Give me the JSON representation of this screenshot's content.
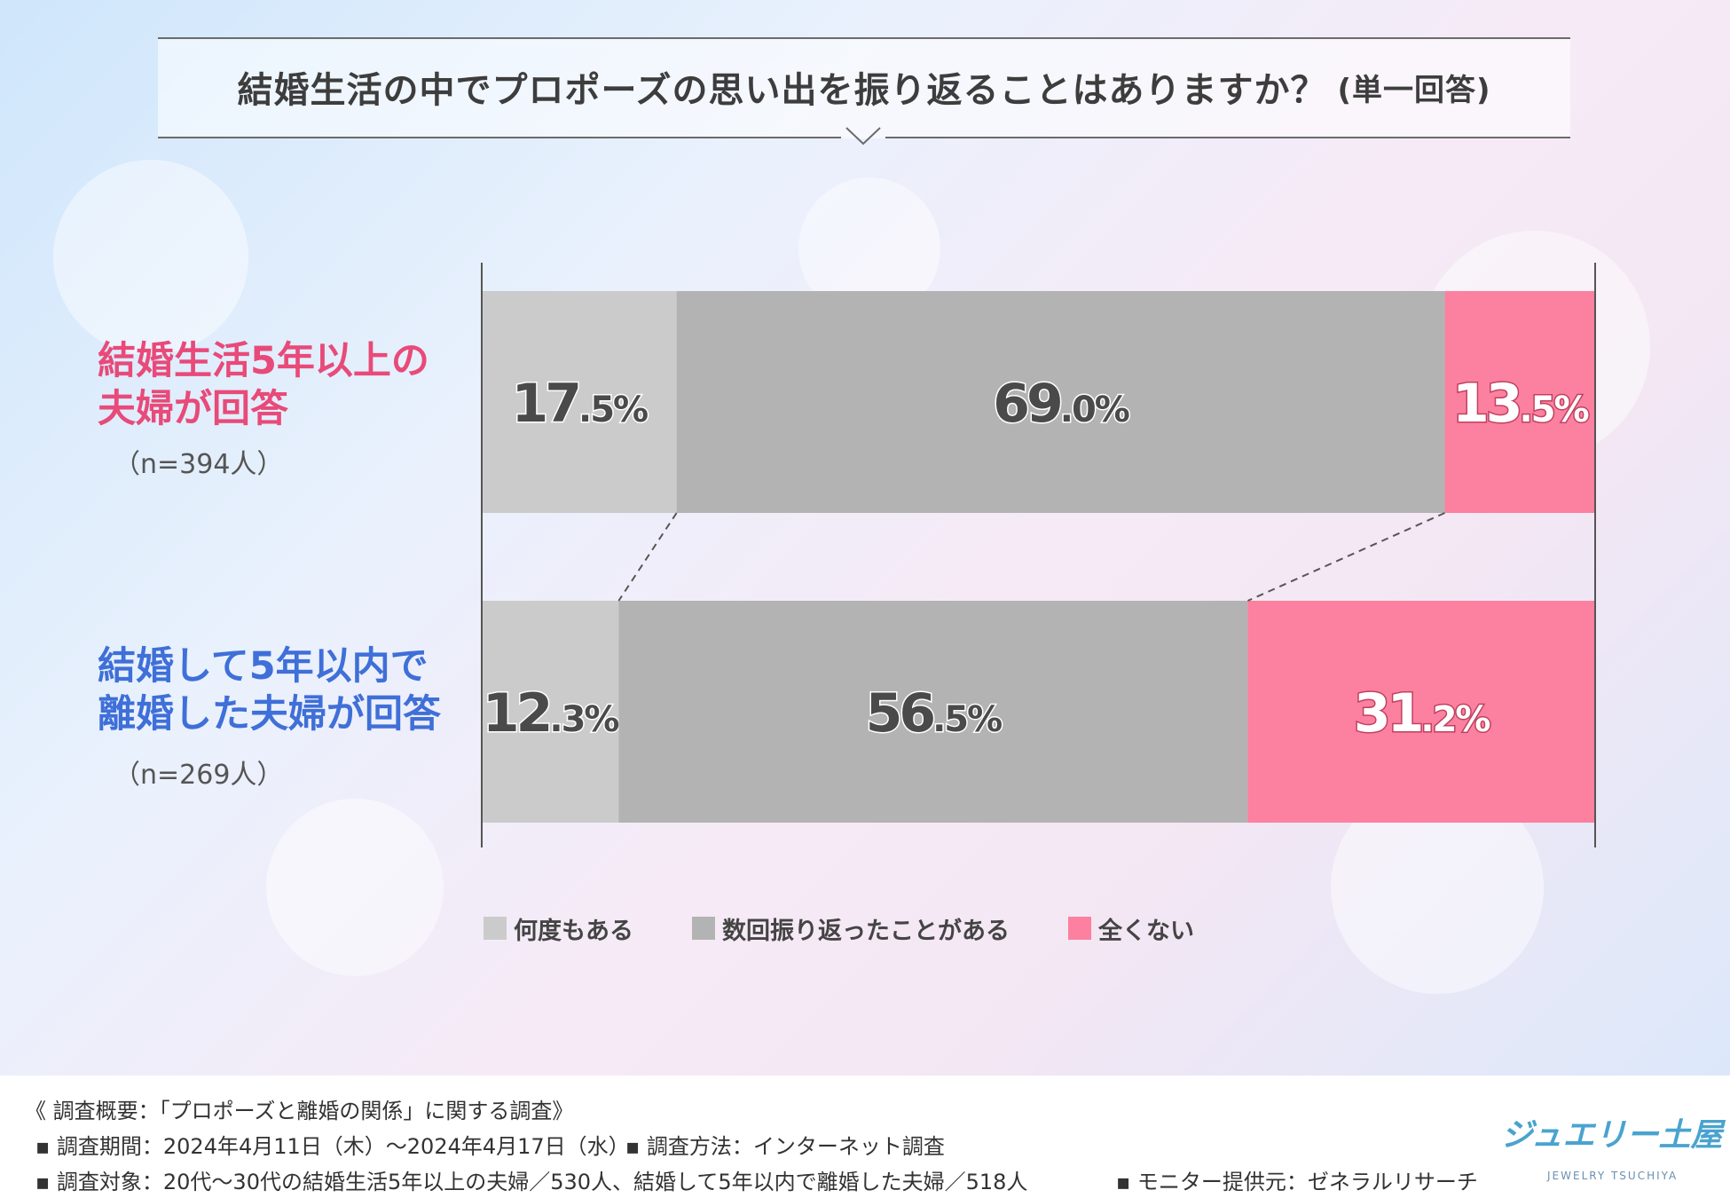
{
  "title": {
    "main": "結婚生活の中でプロポーズの思い出を振り返ることはありますか？",
    "sub": "(単一回答)"
  },
  "rows": [
    {
      "label_line1": "結婚生活5年以上の",
      "label_line2": "夫婦が回答",
      "n": "（n=394人）",
      "color": "#e84a79"
    },
    {
      "label_line1": "結婚して5年以内で",
      "label_line2": "離婚した夫婦が回答",
      "n": "（n=269人）",
      "color": "#3f6fd8"
    }
  ],
  "chart_data": {
    "type": "bar",
    "orientation": "horizontal-stacked-100",
    "categories": [
      "結婚生活5年以上の夫婦が回答",
      "結婚して5年以内で離婚した夫婦が回答"
    ],
    "series": [
      {
        "name": "何度もある",
        "values": [
          17.5,
          12.3
        ],
        "labels_big": [
          "17",
          "12"
        ],
        "labels_small": [
          ".5%",
          ".3%"
        ],
        "color": "#cbcbcb",
        "text_color": "#4a4a4a"
      },
      {
        "name": "数回振り返ったことがある",
        "values": [
          69.0,
          56.5
        ],
        "labels_big": [
          "69",
          "56"
        ],
        "labels_small": [
          ".0%",
          ".5%"
        ],
        "color": "#b3b3b3",
        "text_color": "#4a4a4a"
      },
      {
        "name": "全くない",
        "values": [
          13.5,
          31.2
        ],
        "labels_big": [
          "13",
          "31"
        ],
        "labels_small": [
          ".5%",
          ".2%"
        ],
        "color": "#fc809f",
        "text_color": "#ffffff"
      }
    ],
    "xlim": [
      0,
      100
    ],
    "legend": "bottom-center"
  },
  "footer": {
    "header": "《 調査概要：「プロポーズと離婚の関係」に関する調査》",
    "line1_a": "▪ 調査期間：2024年4月11日（木）～2024年4月17日（水）",
    "line1_b": "▪ 調査方法：インターネット調査",
    "line2_a": "▪ 調査対象：20代～30代の結婚生活5年以上の夫婦／530人、結婚して5年以内で離婚した夫婦／518人",
    "line2_b": "▪ モニター提供元：ゼネラルリサーチ"
  },
  "logo": {
    "main": "ジュエリー土屋",
    "sub": "JEWELRY TSUCHIYA"
  }
}
